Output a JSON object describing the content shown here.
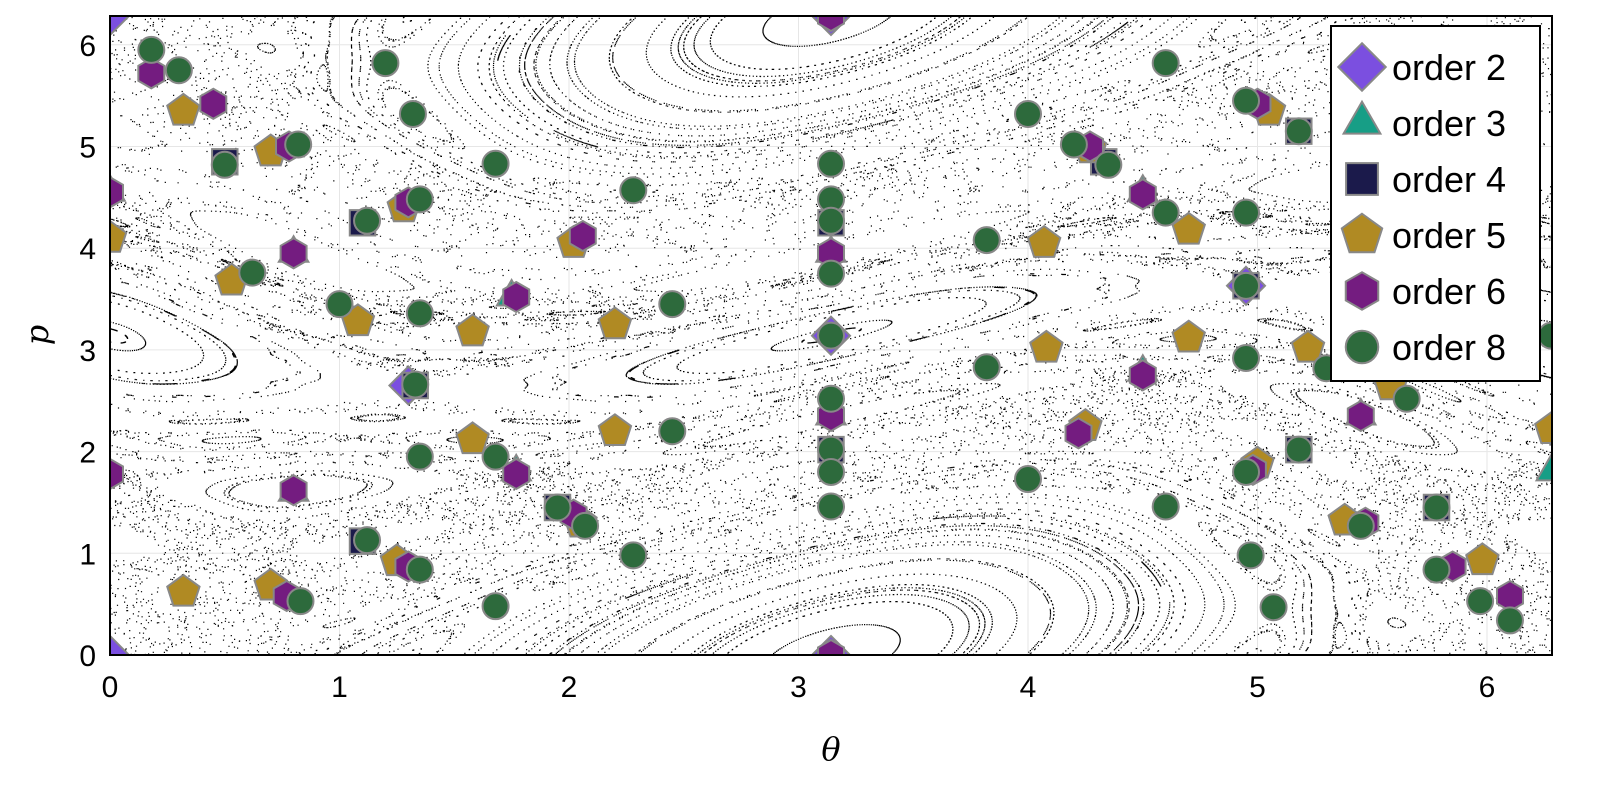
{
  "chart_data": {
    "type": "scatter",
    "xlabel": "θ",
    "ylabel": "p",
    "xlim": [
      0,
      6.2832
    ],
    "ylim": [
      0,
      6.2832
    ],
    "xticks": [
      "0",
      "1",
      "2",
      "3",
      "4",
      "5",
      "6"
    ],
    "yticks": [
      "0",
      "1",
      "2",
      "3",
      "4",
      "5",
      "6"
    ],
    "grid": true,
    "legend_position": "top-right",
    "background": "black dots and curves (Poincaré section of a standard map, K≈1)",
    "series": [
      {
        "name": "order 2",
        "marker": "diamond",
        "color": "#7b4fe0",
        "points": [
          [
            0,
            0
          ],
          [
            3.1416,
            0
          ],
          [
            1.3,
            2.65
          ],
          [
            3.1416,
            3.14
          ],
          [
            4.95,
            3.63
          ],
          [
            0,
            6.2832
          ],
          [
            3.1416,
            6.2832
          ]
        ]
      },
      {
        "name": "order 3",
        "marker": "triangle",
        "color": "#179e86",
        "points": [
          [
            0.8,
            3.95
          ],
          [
            1.75,
            3.52
          ],
          [
            3.1416,
            3.95
          ],
          [
            0.8,
            1.6
          ],
          [
            1.77,
            1.8
          ],
          [
            3.1416,
            2.35
          ],
          [
            4.5,
            2.78
          ],
          [
            4.5,
            4.55
          ],
          [
            5.45,
            2.35
          ],
          [
            6.28,
            1.8
          ],
          [
            0,
            4.55
          ]
        ]
      },
      {
        "name": "order 4",
        "marker": "square",
        "color": "#1b1a4b",
        "points": [
          [
            0.5,
            4.85
          ],
          [
            1.1,
            4.25
          ],
          [
            1.33,
            2.65
          ],
          [
            1.1,
            1.12
          ],
          [
            1.95,
            1.45
          ],
          [
            3.1416,
            2.02
          ],
          [
            3.1416,
            4.25
          ],
          [
            4.33,
            4.85
          ],
          [
            5.18,
            5.15
          ],
          [
            5.18,
            2.02
          ],
          [
            5.78,
            1.45
          ],
          [
            4.95,
            3.63
          ]
        ]
      },
      {
        "name": "order 5",
        "marker": "pentagon",
        "color": "#b08a23",
        "points": [
          [
            0.32,
            0.62
          ],
          [
            0.7,
            0.68
          ],
          [
            1.25,
            0.92
          ],
          [
            2.05,
            1.3
          ],
          [
            0.53,
            3.68
          ],
          [
            1.08,
            3.28
          ],
          [
            1.58,
            3.18
          ],
          [
            2.2,
            3.25
          ],
          [
            1.58,
            2.12
          ],
          [
            2.2,
            2.2
          ],
          [
            0.32,
            5.35
          ],
          [
            0.7,
            4.95
          ],
          [
            1.28,
            4.4
          ],
          [
            2.02,
            4.05
          ],
          [
            4.07,
            4.05
          ],
          [
            4.27,
            4.98
          ],
          [
            5.05,
            5.35
          ],
          [
            4.7,
            4.18
          ],
          [
            4.08,
            3.02
          ],
          [
            4.7,
            3.12
          ],
          [
            5.22,
            3.02
          ],
          [
            5.58,
            2.65
          ],
          [
            5.0,
            1.88
          ],
          [
            5.38,
            1.32
          ],
          [
            5.98,
            0.93
          ],
          [
            4.25,
            2.25
          ],
          [
            0.0,
            4.1
          ],
          [
            6.28,
            2.22
          ]
        ]
      },
      {
        "name": "order 6",
        "marker": "hexagon",
        "color": "#741c80",
        "points": [
          [
            0.18,
            5.72
          ],
          [
            0.45,
            5.42
          ],
          [
            0.78,
            5.0
          ],
          [
            1.3,
            4.45
          ],
          [
            2.06,
            4.12
          ],
          [
            0.8,
            3.95
          ],
          [
            1.77,
            3.52
          ],
          [
            3.1416,
            3.95
          ],
          [
            0.8,
            1.62
          ],
          [
            1.77,
            1.78
          ],
          [
            2.02,
            1.38
          ],
          [
            0.77,
            0.58
          ],
          [
            1.3,
            0.87
          ],
          [
            3.1416,
            2.35
          ],
          [
            4.22,
            2.18
          ],
          [
            4.5,
            2.75
          ],
          [
            4.5,
            4.53
          ],
          [
            5.0,
            5.42
          ],
          [
            4.27,
            5.0
          ],
          [
            5.45,
            2.35
          ],
          [
            4.98,
            1.82
          ],
          [
            5.47,
            1.3
          ],
          [
            5.85,
            0.87
          ],
          [
            6.1,
            0.58
          ],
          [
            0,
            4.55
          ],
          [
            0,
            1.78
          ],
          [
            3.1416,
            0
          ],
          [
            3.1416,
            6.2832
          ]
        ]
      },
      {
        "name": "order 8",
        "marker": "circle",
        "color": "#2d6a3c",
        "points": [
          [
            0.18,
            5.95
          ],
          [
            0.3,
            5.75
          ],
          [
            0.5,
            4.82
          ],
          [
            0.82,
            5.02
          ],
          [
            1.2,
            5.82
          ],
          [
            1.32,
            5.32
          ],
          [
            1.12,
            4.27
          ],
          [
            1.35,
            4.48
          ],
          [
            0.62,
            3.76
          ],
          [
            1.0,
            3.45
          ],
          [
            1.35,
            3.36
          ],
          [
            1.33,
            2.66
          ],
          [
            1.35,
            1.95
          ],
          [
            1.68,
            1.95
          ],
          [
            1.95,
            1.45
          ],
          [
            2.07,
            1.27
          ],
          [
            1.12,
            1.13
          ],
          [
            1.35,
            0.84
          ],
          [
            0.83,
            0.53
          ],
          [
            1.68,
            0.48
          ],
          [
            2.28,
            0.98
          ],
          [
            2.45,
            2.2
          ],
          [
            2.45,
            3.45
          ],
          [
            2.28,
            4.57
          ],
          [
            1.68,
            4.83
          ],
          [
            3.1416,
            4.83
          ],
          [
            3.1416,
            4.48
          ],
          [
            3.1416,
            4.27
          ],
          [
            3.1416,
            3.75
          ],
          [
            3.1416,
            3.14
          ],
          [
            3.1416,
            2.52
          ],
          [
            3.1416,
            2.02
          ],
          [
            3.1416,
            1.8
          ],
          [
            3.1416,
            1.46
          ],
          [
            4.0,
            5.32
          ],
          [
            3.82,
            4.08
          ],
          [
            3.82,
            2.83
          ],
          [
            4.0,
            1.73
          ],
          [
            4.2,
            5.02
          ],
          [
            4.35,
            4.82
          ],
          [
            4.6,
            4.35
          ],
          [
            4.6,
            5.82
          ],
          [
            4.95,
            5.45
          ],
          [
            4.95,
            4.35
          ],
          [
            4.95,
            3.63
          ],
          [
            4.95,
            2.92
          ],
          [
            4.95,
            1.8
          ],
          [
            5.18,
            5.15
          ],
          [
            5.18,
            2.02
          ],
          [
            5.3,
            2.82
          ],
          [
            5.65,
            2.52
          ],
          [
            4.6,
            1.46
          ],
          [
            4.97,
            0.98
          ],
          [
            5.07,
            0.47
          ],
          [
            5.45,
            1.27
          ],
          [
            5.78,
            1.45
          ],
          [
            5.78,
            0.84
          ],
          [
            5.97,
            0.53
          ],
          [
            6.1,
            0.34
          ],
          [
            6.28,
            3.14
          ]
        ]
      }
    ]
  }
}
